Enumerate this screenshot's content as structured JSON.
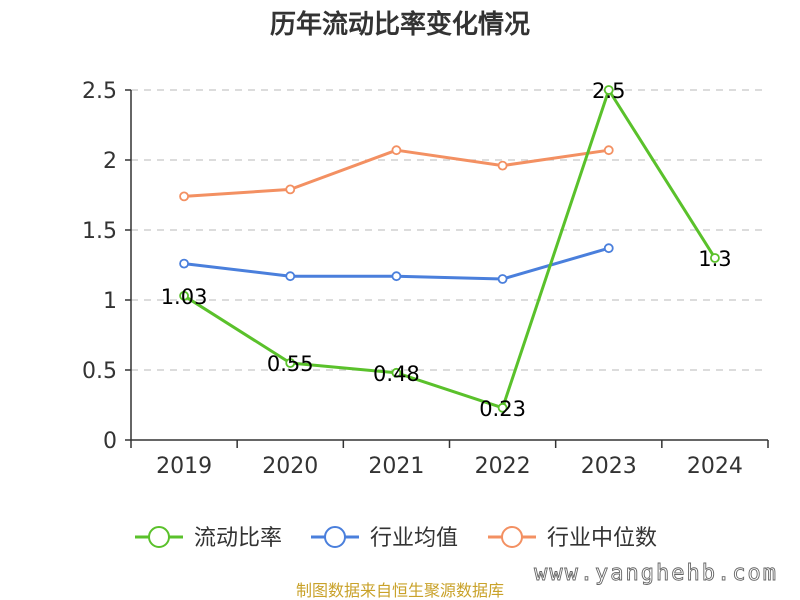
{
  "chart_data": {
    "type": "line",
    "title": "历年流动比率变化情况",
    "categories": [
      "2019",
      "2020",
      "2021",
      "2022",
      "2023",
      "2024"
    ],
    "y_ticks": [
      "0",
      "0.5",
      "1",
      "1.5",
      "2",
      "2.5"
    ],
    "ylim": [
      0,
      2.5
    ],
    "grid": true,
    "legend_position": "bottom",
    "series": [
      {
        "name": "流动比率",
        "color": "#5ac12b",
        "values": [
          1.03,
          0.55,
          0.48,
          0.23,
          2.5,
          1.3
        ],
        "labels": [
          "1.03",
          "0.55",
          "0.48",
          "0.23",
          "2.5",
          "1.3"
        ]
      },
      {
        "name": "行业均值",
        "color": "#4a7fdc",
        "values": [
          1.26,
          1.17,
          1.17,
          1.15,
          1.37,
          null
        ]
      },
      {
        "name": "行业中位数",
        "color": "#f39062",
        "values": [
          1.74,
          1.79,
          2.07,
          1.96,
          2.07,
          null
        ]
      }
    ]
  },
  "footer": {
    "source": "制图数据来自恒生聚源数据库",
    "watermark": "www.yanghehb.com"
  }
}
